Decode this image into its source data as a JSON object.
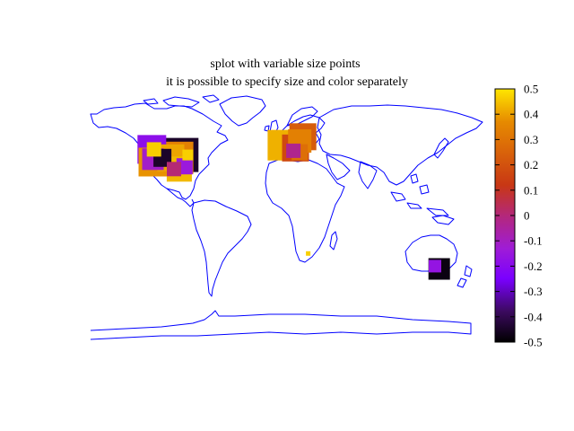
{
  "chart_data": {
    "type": "scatter",
    "title_lines": [
      "splot with variable size points",
      "it is possible to specify size and color separately"
    ],
    "xlim": [
      -180,
      180
    ],
    "ylim": [
      -90,
      90
    ],
    "colorbar": {
      "range": [
        -0.5,
        0.5
      ],
      "ticks": [
        "0.5",
        "0.4",
        "0.3",
        "0.2",
        "0.1",
        "0",
        "-0.1",
        "-0.2",
        "-0.3",
        "-0.4",
        "-0.5"
      ],
      "palette": [
        "#000000",
        "#3b0a5e",
        "#7a00ff",
        "#9f1cd6",
        "#b4287a",
        "#c83714",
        "#d9630a",
        "#e68a00",
        "#f0b400",
        "#ffe600"
      ]
    },
    "points": [
      {
        "lon": -122,
        "lat": 47,
        "size": 3.2,
        "value": -0.22
      },
      {
        "lon": -120,
        "lat": 47,
        "size": 1.6,
        "value": 0.45
      },
      {
        "lon": -121,
        "lat": 38,
        "size": 3.2,
        "value": 0.3
      },
      {
        "lon": -121,
        "lat": 40,
        "size": 2.4,
        "value": -0.15
      },
      {
        "lon": -112,
        "lat": 41,
        "size": 2.0,
        "value": -0.45
      },
      {
        "lon": -104,
        "lat": 41,
        "size": 3.0,
        "value": 0.35
      },
      {
        "lon": -98,
        "lat": 41,
        "size": 3.6,
        "value": 0.25
      },
      {
        "lon": -94,
        "lat": 43,
        "size": 3.8,
        "value": -0.45
      },
      {
        "lon": -88,
        "lat": 43,
        "size": 1.2,
        "value": 0.45
      },
      {
        "lon": -91,
        "lat": 35,
        "size": 1.8,
        "value": -0.18
      },
      {
        "lon": -96,
        "lat": 33,
        "size": 2.8,
        "value": 0.4
      },
      {
        "lon": -101,
        "lat": 33,
        "size": 1.6,
        "value": -0.05
      },
      {
        "lon": 2,
        "lat": 50,
        "size": 3.4,
        "value": 0.38
      },
      {
        "lon": 14,
        "lat": 48,
        "size": 3.0,
        "value": 0.1
      },
      {
        "lon": 12,
        "lat": 46,
        "size": 1.6,
        "value": -0.08
      },
      {
        "lon": 18,
        "lat": 45,
        "size": 1.8,
        "value": 0.2
      },
      {
        "lon": 21,
        "lat": 56,
        "size": 3.0,
        "value": 0.15
      },
      {
        "lon": 18,
        "lat": 53,
        "size": 2.6,
        "value": 0.25
      },
      {
        "lon": 26,
        "lat": -27,
        "size": 0.5,
        "value": 0.45
      },
      {
        "lon": 146,
        "lat": -36,
        "size": 1.4,
        "value": -0.2
      },
      {
        "lon": 150,
        "lat": -38,
        "size": 2.4,
        "value": -0.48
      }
    ]
  }
}
